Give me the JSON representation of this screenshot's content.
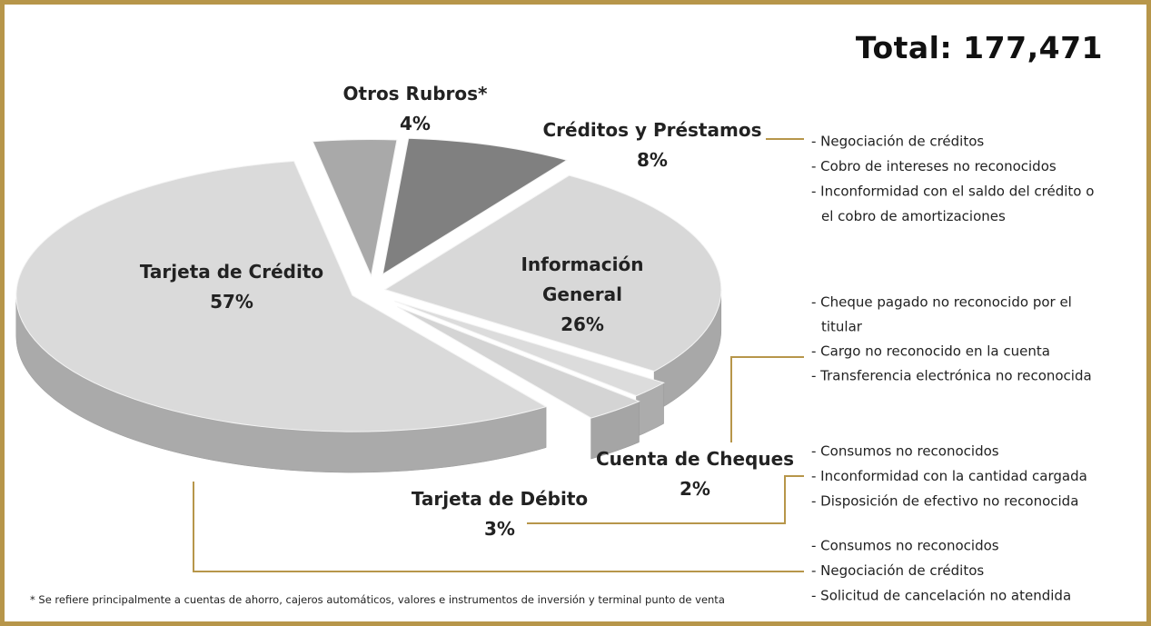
{
  "chart_data": {
    "type": "pie",
    "title": "Total: 177,471",
    "categories": [
      "Otros Rubros*",
      "Créditos y Préstamos",
      "Información General",
      "Cuenta de Cheques",
      "Tarjeta de Débito",
      "Tarjeta de Crédito"
    ],
    "values": [
      4,
      8,
      26,
      2,
      3,
      57
    ],
    "value_labels": [
      "4%",
      "8%",
      "26%",
      "2%",
      "3%",
      "57%"
    ],
    "colors": [
      "#a9a9a9",
      "#808080",
      "#d8d8d8",
      "#dcdcdc",
      "#d4d4d4",
      "#dadada"
    ],
    "notes": [
      {
        "lines": [
          "- Negociación de créditos",
          "- Cobro de intereses no reconocidos",
          "- Inconformidad con el saldo del crédito o",
          "el cobro de amortizaciones"
        ]
      },
      {
        "lines": [
          "- Cheque pagado no reconocido por el",
          "titular",
          "- Cargo no reconocido en la cuenta",
          "- Transferencia electrónica no reconocida"
        ]
      },
      {
        "lines": [
          "- Consumos no reconocidos",
          "- Inconformidad con la cantidad cargada",
          "- Disposición de efectivo no reconocida"
        ]
      },
      {
        "lines": [
          "- Consumos no reconocidos",
          "- Negociación de créditos",
          "- Solicitud de cancelación no atendida"
        ]
      }
    ],
    "footnote": "* Se refiere principalmente a cuentas de ahorro, cajeros automáticos, valores e instrumentos de inversión y terminal punto de venta"
  }
}
